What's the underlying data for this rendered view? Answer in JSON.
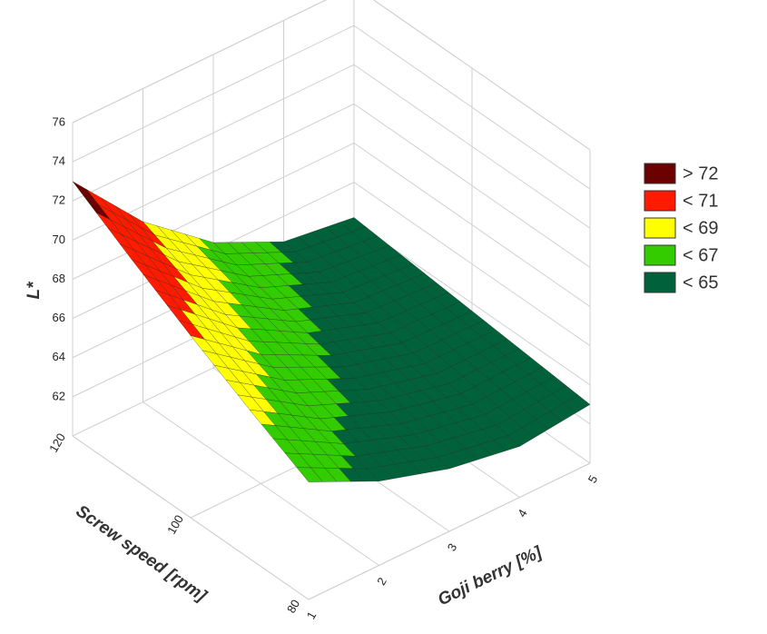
{
  "chart_data": {
    "type": "surface",
    "xlabel": "Goji berry [%]",
    "ylabel": "Screw speed [rpm]",
    "zlabel": "L*",
    "x": [
      1,
      2,
      3,
      4,
      5
    ],
    "y": [
      80,
      90,
      100,
      110,
      120
    ],
    "z": [
      [
        66.0,
        64.3,
        63.2,
        62.6,
        63.0
      ],
      [
        67.6,
        65.4,
        64.0,
        63.2,
        63.3
      ],
      [
        69.3,
        66.6,
        64.8,
        63.7,
        63.6
      ],
      [
        71.1,
        67.9,
        65.6,
        64.2,
        63.9
      ],
      [
        73.0,
        69.2,
        66.4,
        64.7,
        64.2
      ]
    ],
    "xlim": [
      1,
      5
    ],
    "ylim": [
      80,
      120
    ],
    "zlim": [
      60,
      76
    ],
    "xticks": [
      1,
      2,
      3,
      4,
      5
    ],
    "yticks": [
      80,
      100,
      120
    ],
    "zticks": [
      62,
      64,
      66,
      68,
      70,
      72,
      74,
      76
    ],
    "legend": [
      {
        "label": "> 72",
        "value": 72,
        "color": "#6b0000"
      },
      {
        "label": "< 71",
        "value": 71,
        "color": "#ff1a00"
      },
      {
        "label": "< 69",
        "value": 69,
        "color": "#ffff00"
      },
      {
        "label": "< 67",
        "value": 67,
        "color": "#33cc00"
      },
      {
        "label": "< 65",
        "value": 65,
        "color": "#00613a"
      }
    ]
  }
}
